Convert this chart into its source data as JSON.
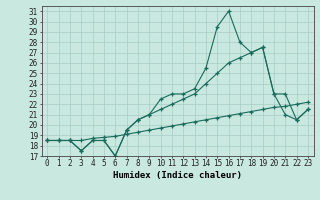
{
  "xlabel": "Humidex (Indice chaleur)",
  "bg_color": "#c8e8e0",
  "grid_color": "#a8ccc4",
  "line_color": "#1a6b5a",
  "x_vals": [
    0,
    1,
    2,
    3,
    4,
    5,
    6,
    7,
    8,
    9,
    10,
    11,
    12,
    13,
    14,
    15,
    16,
    17,
    18,
    19,
    20,
    21,
    22,
    23
  ],
  "line1": [
    18.5,
    18.5,
    18.5,
    17.5,
    18.5,
    18.5,
    17.0,
    19.5,
    20.5,
    21.0,
    22.5,
    23.0,
    23.0,
    23.5,
    25.5,
    29.5,
    31.0,
    28.0,
    27.0,
    27.5,
    23.0,
    23.0,
    20.5,
    21.5
  ],
  "line2": [
    18.5,
    18.5,
    18.5,
    17.5,
    18.5,
    18.5,
    17.0,
    19.5,
    20.5,
    21.0,
    21.5,
    22.0,
    22.5,
    23.0,
    24.0,
    25.0,
    26.0,
    26.5,
    27.0,
    27.5,
    23.0,
    21.0,
    20.5,
    21.5
  ],
  "line3": [
    18.5,
    18.5,
    18.5,
    18.5,
    18.7,
    18.8,
    18.9,
    19.1,
    19.3,
    19.5,
    19.7,
    19.9,
    20.1,
    20.3,
    20.5,
    20.7,
    20.9,
    21.1,
    21.3,
    21.5,
    21.7,
    21.8,
    22.0,
    22.2
  ],
  "ylim": [
    17,
    31.5
  ],
  "xlim": [
    -0.5,
    23.5
  ],
  "yticks": [
    17,
    18,
    19,
    20,
    21,
    22,
    23,
    24,
    25,
    26,
    27,
    28,
    29,
    30,
    31
  ],
  "xticks": [
    0,
    1,
    2,
    3,
    4,
    5,
    6,
    7,
    8,
    9,
    10,
    11,
    12,
    13,
    14,
    15,
    16,
    17,
    18,
    19,
    20,
    21,
    22,
    23
  ],
  "tick_fontsize": 5.5,
  "xlabel_fontsize": 6.5
}
